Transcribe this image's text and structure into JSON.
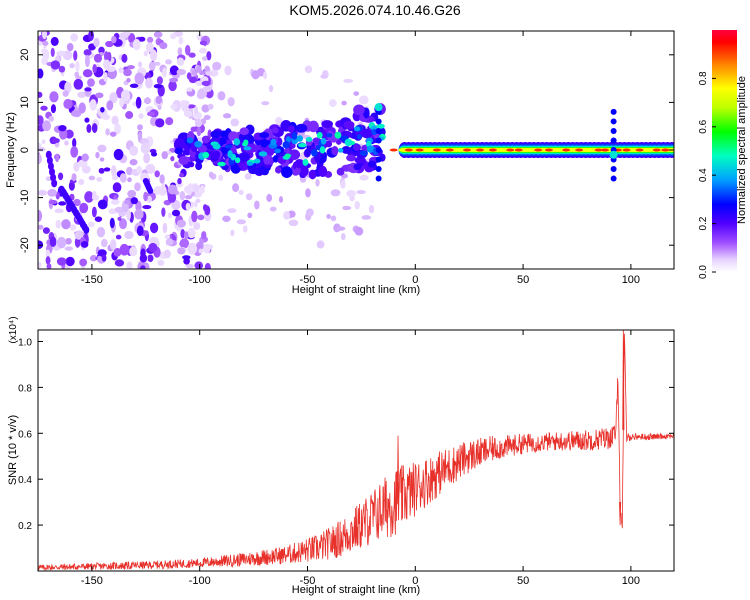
{
  "title": "KOM5.2026.074.10.46.G26",
  "colors": {
    "snr_line": "#e8302a",
    "background": "#ffffff",
    "colormap": [
      "#e8d4ff",
      "#a050ff",
      "#5000ff",
      "#0000ff",
      "#00a0ff",
      "#00ffc0",
      "#00ff00",
      "#c0ff00",
      "#ffff00",
      "#ff8000",
      "#ff0000"
    ]
  },
  "chart_data": [
    {
      "type": "heatmap",
      "title": "KOM5.2026.074.10.46.G26",
      "xlabel": "Height of straight line (km)",
      "ylabel": "Frequency (Hz)",
      "xlim": [
        -175,
        120
      ],
      "ylim": [
        -25,
        25
      ],
      "x_ticks": [
        -150,
        -100,
        -50,
        0,
        50,
        100
      ],
      "x_tick_labels": [
        "-150",
        "-100",
        "-50",
        "0",
        "50",
        "100"
      ],
      "y_ticks": [
        20,
        10,
        0,
        -10,
        -20
      ],
      "y_tick_labels": [
        "20",
        "10",
        "0",
        "-10",
        "-20"
      ],
      "colorbar": {
        "label": "Normalized spectral amplitude",
        "range": [
          0,
          1
        ],
        "ticks": [
          0.0,
          0.2,
          0.4,
          0.6,
          0.8
        ],
        "tick_labels": [
          "0.0",
          "0.2",
          "0.4",
          "0.6",
          "0.8"
        ]
      },
      "features": {
        "main_echo_band": {
          "x_range": [
            -5,
            120
          ],
          "frequency_hz": 0,
          "peak_amplitude": 1.0
        },
        "scattered_echoes": {
          "x_range": [
            -110,
            -15
          ],
          "frequency_hz": 0,
          "peak_amplitude": 0.5
        },
        "noise_region": {
          "x_range": [
            -175,
            -105
          ],
          "frequency_range_hz": [
            -25,
            25
          ]
        },
        "spike_at_km": [
          -17,
          92
        ]
      }
    },
    {
      "type": "line",
      "xlabel": "Height of straight line (km)",
      "ylabel": "SNR (10 * v/v)",
      "y_multiplier": "(x10⁴)",
      "xlim": [
        -175,
        120
      ],
      "ylim": [
        0,
        1.05
      ],
      "x_ticks": [
        -150,
        -100,
        -50,
        0,
        50,
        100
      ],
      "x_tick_labels": [
        "-150",
        "-100",
        "-50",
        "0",
        "50",
        "100"
      ],
      "y_ticks": [
        0.2,
        0.4,
        0.6,
        0.8,
        1.0
      ],
      "y_tick_labels": [
        "0.2",
        "0.4",
        "0.6",
        "0.8",
        "1.0"
      ],
      "series": [
        {
          "name": "SNR",
          "trend_x": [
            -175,
            -150,
            -125,
            -100,
            -80,
            -60,
            -45,
            -35,
            -25,
            -15,
            -5,
            5,
            15,
            25,
            35,
            50,
            65,
            80,
            90,
            93,
            94,
            95,
            96,
            97,
            98,
            100,
            110,
            120
          ],
          "trend_y": [
            0.015,
            0.02,
            0.025,
            0.035,
            0.05,
            0.07,
            0.1,
            0.14,
            0.2,
            0.27,
            0.33,
            0.39,
            0.45,
            0.5,
            0.53,
            0.555,
            0.565,
            0.57,
            0.58,
            0.6,
            0.85,
            0.3,
            0.18,
            1.05,
            0.58,
            0.585,
            0.585,
            0.59
          ],
          "noise_amplitude_x": [
            -175,
            -100,
            -60,
            -40,
            -20,
            -10,
            0,
            20,
            40,
            60,
            90,
            100,
            120
          ],
          "noise_amplitude_y": [
            0.012,
            0.02,
            0.04,
            0.07,
            0.12,
            0.15,
            0.12,
            0.08,
            0.05,
            0.04,
            0.05,
            0.015,
            0.012
          ],
          "sharp_spikes": [
            {
              "x": -8,
              "y": 0.59
            },
            {
              "x": 95,
              "y": 0.2
            },
            {
              "x": 96.5,
              "y": 1.05
            }
          ]
        }
      ]
    }
  ]
}
